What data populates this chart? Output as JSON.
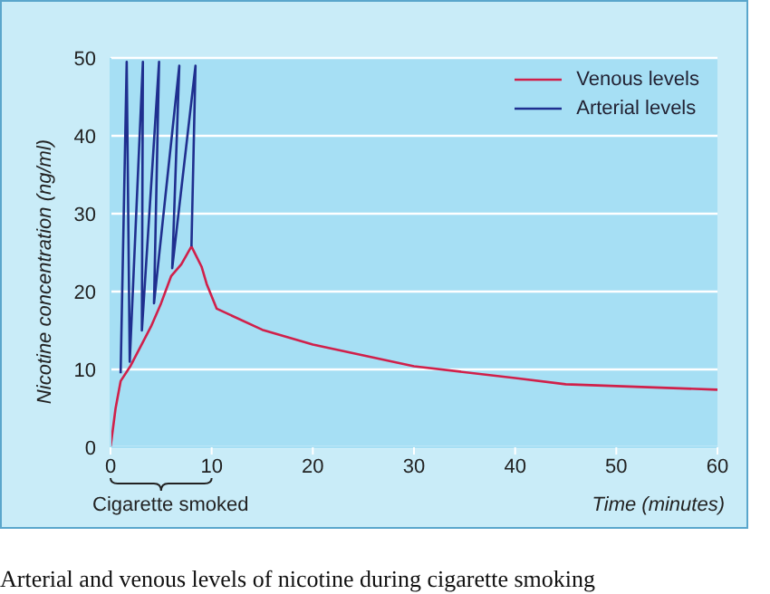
{
  "chart_data": {
    "type": "line",
    "xlabel": "Time (minutes)",
    "ylabel": "Nicotine concentration (ng/ml)",
    "xlim": [
      0,
      60
    ],
    "xticks": [
      0,
      10,
      20,
      30,
      40,
      50,
      60
    ],
    "ylim": [
      0,
      50
    ],
    "yticks": [
      0,
      10,
      20,
      30,
      40,
      50
    ],
    "grid": "y",
    "legend": "top right",
    "marker": "none",
    "line_style": "solid",
    "series": [
      {
        "name": "Venous levels",
        "color": "#d0204a",
        "x": [
          0,
          0.5,
          1,
          2,
          3,
          4,
          5,
          6,
          7,
          8,
          9,
          9.5,
          10.5,
          15,
          20,
          25,
          30,
          40,
          45,
          60
        ],
        "values": [
          0,
          5,
          8.5,
          10.5,
          13,
          15.5,
          18.5,
          22,
          23.5,
          25.8,
          23.2,
          21,
          17.8,
          15.1,
          13.2,
          11.8,
          10.4,
          8.9,
          8.1,
          7.4
        ]
      },
      {
        "name": "Arterial levels",
        "color": "#1f2f8f",
        "x": [
          1,
          1.6,
          1.9,
          3.2,
          3.1,
          4.8,
          4.3,
          6.8,
          6.1,
          8.4,
          8.0
        ],
        "values": [
          9.5,
          49.5,
          11,
          49.5,
          15,
          49.5,
          18.5,
          49,
          23,
          49,
          25.8
        ]
      }
    ],
    "annotations": [
      "Cigarette smoked",
      "Arterial and venous levels of nicotine during cigarette smoking"
    ]
  }
}
